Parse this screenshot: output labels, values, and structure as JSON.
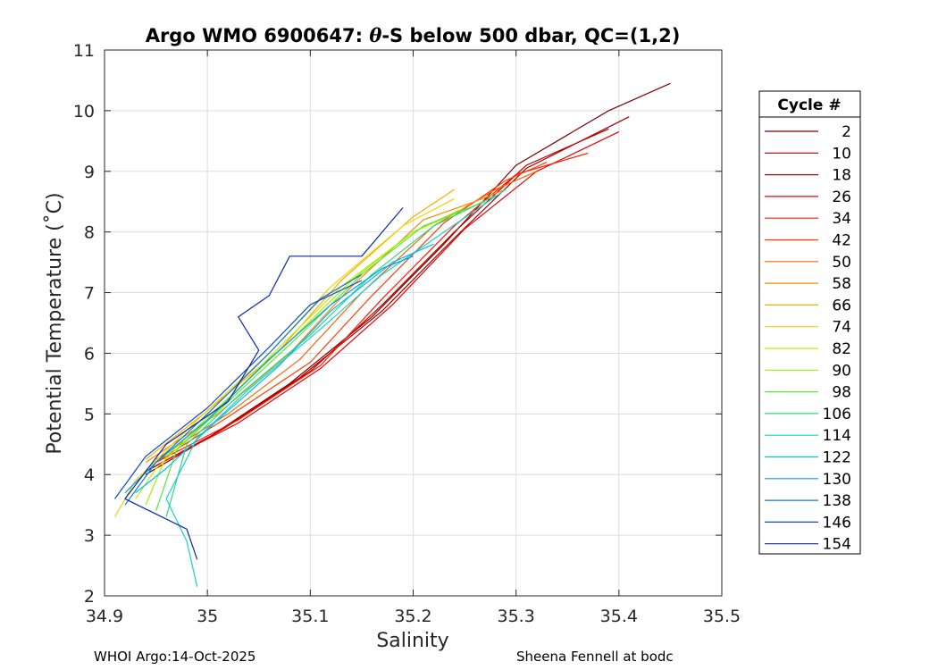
{
  "chart_data": {
    "type": "line",
    "title": "Argo WMO 6900647: θ-S below 500 dbar,  QC=(1,2)",
    "title_prefix": "Argo WMO 6900647: ",
    "title_theta": "θ",
    "title_suffix": "-S below 500 dbar,  QC=(1,2)",
    "xlabel": "Salinity",
    "ylabel": "Potential Temperature (˚C)",
    "xlim": [
      34.9,
      35.5
    ],
    "ylim": [
      2,
      11
    ],
    "xticks": [
      "34.9",
      "35",
      "35.1",
      "35.2",
      "35.3",
      "35.4",
      "35.5"
    ],
    "yticks": [
      "2",
      "3",
      "4",
      "5",
      "6",
      "7",
      "8",
      "9",
      "10",
      "11"
    ],
    "grid": true,
    "legend_title": "Cycle #",
    "legend_position": "right",
    "series": [
      {
        "name": "2",
        "color": "#7f0000",
        "points": [
          [
            34.94,
            4.0
          ],
          [
            35.0,
            4.6
          ],
          [
            35.08,
            5.5
          ],
          [
            35.16,
            6.6
          ],
          [
            35.23,
            7.8
          ],
          [
            35.3,
            9.1
          ],
          [
            35.39,
            10.0
          ],
          [
            35.45,
            10.45
          ]
        ]
      },
      {
        "name": "10",
        "color": "#a30000",
        "points": [
          [
            34.94,
            4.05
          ],
          [
            35.01,
            4.7
          ],
          [
            35.09,
            5.6
          ],
          [
            35.17,
            6.7
          ],
          [
            35.24,
            7.9
          ],
          [
            35.31,
            9.05
          ],
          [
            35.41,
            9.9
          ]
        ]
      },
      {
        "name": "18",
        "color": "#c80000",
        "points": [
          [
            34.95,
            4.1
          ],
          [
            35.02,
            4.8
          ],
          [
            35.1,
            5.7
          ],
          [
            35.17,
            6.8
          ],
          [
            35.24,
            8.0
          ],
          [
            35.31,
            9.1
          ],
          [
            35.39,
            9.7
          ]
        ]
      },
      {
        "name": "26",
        "color": "#ee0000",
        "points": [
          [
            34.95,
            4.15
          ],
          [
            35.03,
            4.85
          ],
          [
            35.11,
            5.75
          ],
          [
            35.18,
            6.8
          ],
          [
            35.25,
            8.05
          ],
          [
            35.32,
            9.0
          ],
          [
            35.4,
            9.65
          ]
        ]
      },
      {
        "name": "34",
        "color": "#ff1900",
        "points": [
          [
            34.95,
            4.2
          ],
          [
            35.03,
            4.9
          ],
          [
            35.11,
            5.8
          ],
          [
            35.17,
            6.9
          ],
          [
            35.24,
            8.1
          ],
          [
            35.3,
            8.95
          ],
          [
            35.37,
            9.3
          ]
        ]
      },
      {
        "name": "42",
        "color": "#ff3d00",
        "points": [
          [
            34.95,
            4.2
          ],
          [
            35.02,
            4.95
          ],
          [
            35.1,
            5.85
          ],
          [
            35.16,
            6.95
          ],
          [
            35.23,
            8.15
          ],
          [
            35.29,
            8.85
          ],
          [
            35.33,
            9.15
          ]
        ]
      },
      {
        "name": "50",
        "color": "#ff6200",
        "points": [
          [
            34.95,
            4.25
          ],
          [
            35.02,
            5.0
          ],
          [
            35.09,
            5.9
          ],
          [
            35.15,
            7.0
          ],
          [
            35.22,
            8.1
          ],
          [
            35.28,
            8.7
          ],
          [
            35.32,
            9.0
          ]
        ]
      },
      {
        "name": "58",
        "color": "#ff8600",
        "points": [
          [
            34.94,
            4.2
          ],
          [
            35.01,
            5.0
          ],
          [
            35.08,
            6.0
          ],
          [
            35.14,
            7.1
          ],
          [
            35.21,
            8.2
          ],
          [
            35.26,
            8.5
          ],
          [
            35.29,
            8.7
          ]
        ]
      },
      {
        "name": "66",
        "color": "#ffaa00",
        "points": [
          [
            34.94,
            4.25
          ],
          [
            35.0,
            5.05
          ],
          [
            35.07,
            6.05
          ],
          [
            35.13,
            7.2
          ],
          [
            35.2,
            8.25
          ],
          [
            35.24,
            8.7
          ]
        ]
      },
      {
        "name": "74",
        "color": "#f0d400",
        "points": [
          [
            34.91,
            3.3
          ],
          [
            34.93,
            3.9
          ],
          [
            34.99,
            4.9
          ],
          [
            35.06,
            6.0
          ],
          [
            35.12,
            7.1
          ],
          [
            35.19,
            8.1
          ],
          [
            35.24,
            8.55
          ]
        ]
      },
      {
        "name": "82",
        "color": "#c8e800",
        "points": [
          [
            34.93,
            3.6
          ],
          [
            34.95,
            4.1
          ],
          [
            35.0,
            4.9
          ],
          [
            35.07,
            6.1
          ],
          [
            35.13,
            7.1
          ],
          [
            35.2,
            8.0
          ],
          [
            35.24,
            8.3
          ]
        ]
      },
      {
        "name": "90",
        "color": "#9cf000",
        "points": [
          [
            34.94,
            3.5
          ],
          [
            34.96,
            4.3
          ],
          [
            35.01,
            5.1
          ],
          [
            35.08,
            6.2
          ],
          [
            35.14,
            7.2
          ],
          [
            35.2,
            8.0
          ],
          [
            35.25,
            8.4
          ]
        ]
      },
      {
        "name": "98",
        "color": "#5ae83c",
        "points": [
          [
            34.95,
            3.4
          ],
          [
            34.97,
            4.4
          ],
          [
            35.02,
            5.2
          ],
          [
            35.09,
            6.3
          ],
          [
            35.15,
            7.3
          ],
          [
            35.21,
            8.1
          ],
          [
            35.27,
            8.5
          ]
        ]
      },
      {
        "name": "106",
        "color": "#2cd882",
        "points": [
          [
            34.96,
            3.3
          ],
          [
            34.98,
            4.5
          ],
          [
            35.03,
            5.3
          ],
          [
            35.1,
            6.3
          ],
          [
            35.16,
            7.3
          ],
          [
            35.22,
            8.1
          ],
          [
            35.28,
            8.6
          ]
        ]
      },
      {
        "name": "114",
        "color": "#14d2cc",
        "points": [
          [
            34.99,
            2.15
          ],
          [
            34.98,
            2.9
          ],
          [
            34.96,
            3.6
          ],
          [
            34.99,
            4.6
          ],
          [
            35.04,
            5.4
          ],
          [
            35.11,
            6.4
          ],
          [
            35.17,
            7.3
          ],
          [
            35.23,
            8.0
          ],
          [
            35.29,
            8.7
          ]
        ]
      },
      {
        "name": "122",
        "color": "#00beeb",
        "points": [
          [
            34.93,
            3.7
          ],
          [
            34.96,
            4.1
          ],
          [
            35.01,
            4.9
          ],
          [
            35.07,
            5.8
          ],
          [
            35.12,
            6.7
          ],
          [
            35.18,
            7.5
          ],
          [
            35.22,
            7.8
          ]
        ]
      },
      {
        "name": "130",
        "color": "#00a0e0",
        "points": [
          [
            34.92,
            3.7
          ],
          [
            34.95,
            4.2
          ],
          [
            35.0,
            4.9
          ],
          [
            35.06,
            5.9
          ],
          [
            35.12,
            6.8
          ],
          [
            35.17,
            7.4
          ],
          [
            35.2,
            7.6
          ]
        ]
      },
      {
        "name": "138",
        "color": "#0f78d2",
        "points": [
          [
            34.92,
            3.5
          ],
          [
            34.95,
            4.2
          ],
          [
            35.0,
            5.0
          ],
          [
            35.06,
            6.0
          ],
          [
            35.11,
            6.9
          ],
          [
            35.15,
            7.3
          ]
        ]
      },
      {
        "name": "146",
        "color": "#0f4bc8",
        "points": [
          [
            34.91,
            3.6
          ],
          [
            34.94,
            4.3
          ],
          [
            35.0,
            5.1
          ],
          [
            35.06,
            6.1
          ],
          [
            35.1,
            6.8
          ],
          [
            35.15,
            7.2
          ]
        ]
      },
      {
        "name": "154",
        "color": "#0a28aa",
        "points": [
          [
            34.99,
            2.6
          ],
          [
            34.98,
            3.1
          ],
          [
            34.92,
            3.6
          ],
          [
            34.96,
            4.5
          ],
          [
            35.02,
            5.2
          ],
          [
            35.05,
            6.05
          ],
          [
            35.03,
            6.6
          ],
          [
            35.06,
            6.95
          ],
          [
            35.08,
            7.6
          ],
          [
            35.15,
            7.6
          ],
          [
            35.19,
            8.4
          ]
        ]
      }
    ]
  },
  "footer": {
    "left": "WHOI Argo:14-Oct-2025",
    "right": "Sheena Fennell at bodc"
  }
}
